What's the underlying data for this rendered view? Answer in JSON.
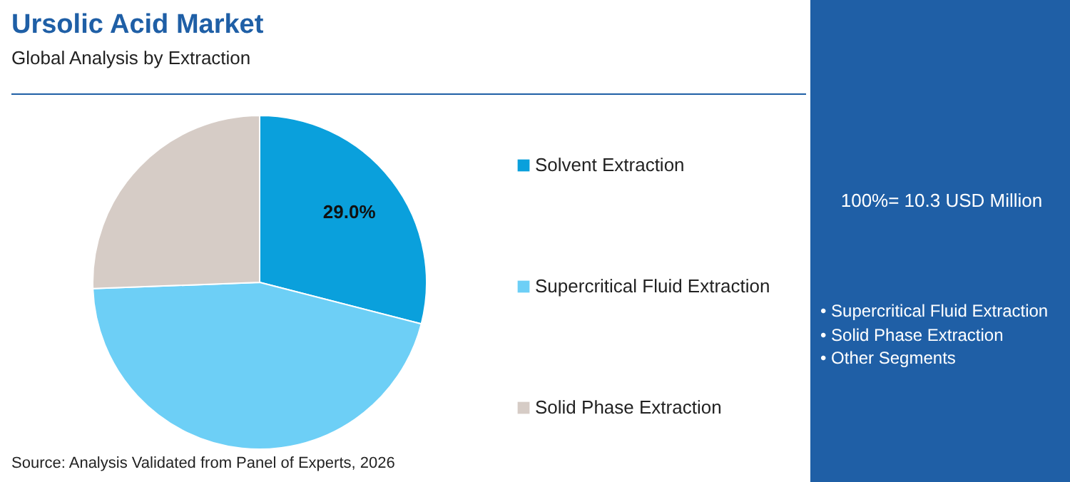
{
  "chart_data": {
    "type": "pie",
    "title": "Ursolic Acid Market",
    "subtitle": "Global Analysis by Extraction",
    "categories": [
      "Solvent Extraction",
      "Supercritical Fluid Extraction",
      "Solid Phase Extraction"
    ],
    "values": [
      29.0,
      45.4,
      25.6
    ],
    "colors": [
      "#0aa0dc",
      "#6dcff6",
      "#d6ccc6"
    ],
    "value_labels": [
      "29.0%",
      null,
      null
    ],
    "legend": "right",
    "annotations": [
      "100%= 10.3 USD Million",
      "• Supercritical Fluid Extraction",
      "• Solid Phase Extraction",
      "• Other Segments",
      "Source: Analysis Validated from Panel of Experts, 2026"
    ]
  }
}
